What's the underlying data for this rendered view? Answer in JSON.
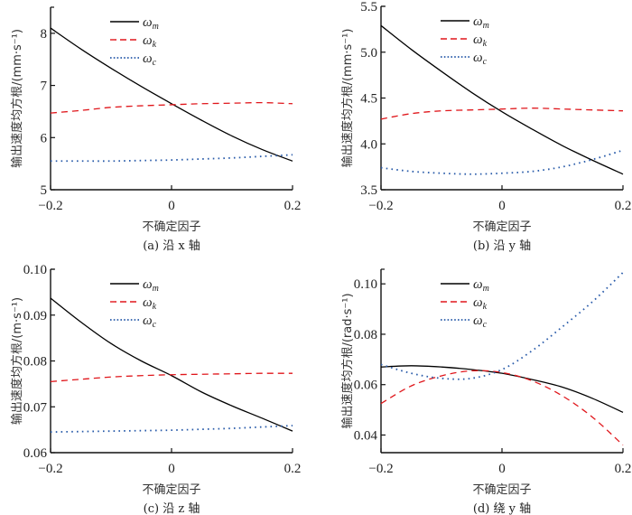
{
  "chart_data": [
    {
      "type": "line",
      "panel": "a",
      "caption": "(a) 沿 x 轴",
      "xlabel": "不确定因子",
      "ylabel": "输出速度均方根/(mm·s⁻¹)",
      "xlim": [
        -0.2,
        0.2
      ],
      "ylim": [
        5,
        8.5
      ],
      "xticks": [
        -0.2,
        0,
        0.2
      ],
      "xtick_labels": [
        "−0.2",
        "0",
        "0.2"
      ],
      "yticks": [
        5,
        6,
        7,
        8
      ],
      "ytick_labels": [
        "5",
        "6",
        "7",
        "8"
      ],
      "grid": false,
      "legend_position": "top-center",
      "x": [
        -0.2,
        -0.15,
        -0.1,
        -0.05,
        0,
        0.05,
        0.1,
        0.15,
        0.2
      ],
      "series": [
        {
          "name": "ω_m",
          "symbol": "ω",
          "sub": "m",
          "style": "solid",
          "color": "#000000",
          "values": [
            8.1,
            7.7,
            7.33,
            6.98,
            6.65,
            6.33,
            6.03,
            5.77,
            5.55
          ]
        },
        {
          "name": "ω_k",
          "symbol": "ω",
          "sub": "k",
          "style": "dashed",
          "color": "#e0161b",
          "values": [
            6.47,
            6.52,
            6.58,
            6.61,
            6.63,
            6.65,
            6.66,
            6.67,
            6.65
          ]
        },
        {
          "name": "ω_c",
          "symbol": "ω",
          "sub": "c",
          "style": "dotted",
          "color": "#2a5caa",
          "values": [
            5.55,
            5.55,
            5.55,
            5.56,
            5.57,
            5.59,
            5.61,
            5.64,
            5.67
          ]
        }
      ]
    },
    {
      "type": "line",
      "panel": "b",
      "caption": "(b) 沿 y 轴",
      "xlabel": "不确定因子",
      "ylabel": "输出速度均方根/(mm·s⁻¹)",
      "xlim": [
        -0.2,
        0.2
      ],
      "ylim": [
        3.5,
        5.5
      ],
      "xticks": [
        -0.2,
        0,
        0.2
      ],
      "xtick_labels": [
        "−0.2",
        "0",
        "0.2"
      ],
      "yticks": [
        3.5,
        4.0,
        4.5,
        5.0,
        5.5
      ],
      "ytick_labels": [
        "3.5",
        "4.0",
        "4.5",
        "5.0",
        "5.5"
      ],
      "grid": false,
      "legend_position": "top-center",
      "x": [
        -0.2,
        -0.15,
        -0.1,
        -0.05,
        0,
        0.05,
        0.1,
        0.15,
        0.2
      ],
      "series": [
        {
          "name": "ω_m",
          "symbol": "ω",
          "sub": "m",
          "style": "solid",
          "color": "#000000",
          "values": [
            5.29,
            5.03,
            4.79,
            4.56,
            4.35,
            4.16,
            3.98,
            3.82,
            3.67
          ]
        },
        {
          "name": "ω_k",
          "symbol": "ω",
          "sub": "k",
          "style": "dashed",
          "color": "#e0161b",
          "values": [
            4.27,
            4.33,
            4.36,
            4.37,
            4.38,
            4.39,
            4.38,
            4.37,
            4.36
          ]
        },
        {
          "name": "ω_c",
          "symbol": "ω",
          "sub": "c",
          "style": "dotted",
          "color": "#2a5caa",
          "values": [
            3.74,
            3.7,
            3.68,
            3.67,
            3.68,
            3.7,
            3.75,
            3.83,
            3.93
          ]
        }
      ]
    },
    {
      "type": "line",
      "panel": "c",
      "caption": "(c) 沿 z 轴",
      "xlabel": "不确定因子",
      "ylabel": "输出速度均方根/(m·s⁻¹)",
      "xlim": [
        -0.2,
        0.2
      ],
      "ylim": [
        0.06,
        0.1
      ],
      "xticks": [
        -0.2,
        0,
        0.2
      ],
      "xtick_labels": [
        "−0.2",
        "0",
        "0.2"
      ],
      "yticks": [
        0.06,
        0.07,
        0.08,
        0.09,
        0.1
      ],
      "ytick_labels": [
        "0.06",
        "0.07",
        "0.08",
        "0.09",
        "0.10"
      ],
      "grid": false,
      "legend_position": "top-center",
      "x": [
        -0.2,
        -0.15,
        -0.1,
        -0.05,
        0,
        0.05,
        0.1,
        0.15,
        0.2
      ],
      "series": [
        {
          "name": "ω_m",
          "symbol": "ω",
          "sub": "m",
          "style": "solid",
          "color": "#000000",
          "values": [
            0.0937,
            0.0885,
            0.0838,
            0.08,
            0.0768,
            0.0732,
            0.0702,
            0.0675,
            0.0647
          ]
        },
        {
          "name": "ω_k",
          "symbol": "ω",
          "sub": "k",
          "style": "dashed",
          "color": "#e0161b",
          "values": [
            0.0755,
            0.076,
            0.0765,
            0.0768,
            0.077,
            0.0771,
            0.0772,
            0.0773,
            0.0773
          ]
        },
        {
          "name": "ω_c",
          "symbol": "ω",
          "sub": "c",
          "style": "dotted",
          "color": "#2a5caa",
          "values": [
            0.0645,
            0.0646,
            0.0647,
            0.0648,
            0.0649,
            0.0651,
            0.0653,
            0.0656,
            0.0659
          ]
        }
      ]
    },
    {
      "type": "line",
      "panel": "d",
      "caption": "(d) 绕 y 轴",
      "xlabel": "不确定因子",
      "ylabel": "输出速度均方根/(rad·s⁻¹)",
      "xlim": [
        -0.2,
        0.2
      ],
      "ylim": [
        0.033,
        0.1058
      ],
      "xticks": [
        -0.2,
        0,
        0.2
      ],
      "xtick_labels": [
        "−0.2",
        "0",
        "0.2"
      ],
      "yticks": [
        0.04,
        0.06,
        0.08,
        0.1
      ],
      "ytick_labels": [
        "0.04",
        "0.06",
        "0.08",
        "0.10"
      ],
      "grid": false,
      "legend_position": "top-center",
      "x": [
        -0.2,
        -0.15,
        -0.1,
        -0.05,
        0,
        0.05,
        0.1,
        0.15,
        0.2
      ],
      "series": [
        {
          "name": "ω_m",
          "symbol": "ω",
          "sub": "m",
          "style": "solid",
          "color": "#000000",
          "values": [
            0.067,
            0.0675,
            0.067,
            0.066,
            0.0645,
            0.062,
            0.059,
            0.0545,
            0.049
          ]
        },
        {
          "name": "ω_k",
          "symbol": "ω",
          "sub": "k",
          "style": "dashed",
          "color": "#e0161b",
          "values": [
            0.0525,
            0.0595,
            0.0635,
            0.0655,
            0.0648,
            0.0615,
            0.0555,
            0.047,
            0.036
          ]
        },
        {
          "name": "ω_c",
          "symbol": "ω",
          "sub": "c",
          "style": "dotted",
          "color": "#2a5caa",
          "values": [
            0.068,
            0.0645,
            0.0625,
            0.0625,
            0.066,
            0.0735,
            0.083,
            0.093,
            0.1045
          ]
        }
      ]
    }
  ]
}
